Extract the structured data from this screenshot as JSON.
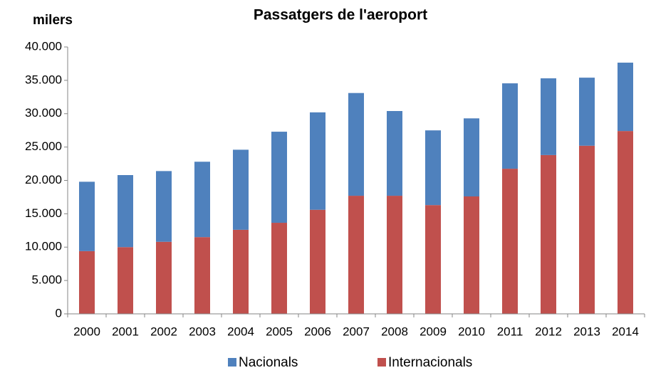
{
  "chart_data": {
    "type": "stacked_bar",
    "title": "Passatgers de l'aeroport",
    "y_label": "milers",
    "categories": [
      "2000",
      "2001",
      "2002",
      "2003",
      "2004",
      "2005",
      "2006",
      "2007",
      "2008",
      "2009",
      "2010",
      "2011",
      "2012",
      "2013",
      "2014"
    ],
    "series": [
      {
        "name": "Nacionals",
        "color": "#4f81bd",
        "values": [
          10400,
          10800,
          10600,
          11300,
          12000,
          13650,
          14600,
          15400,
          12700,
          11200,
          11700,
          12800,
          11500,
          10200,
          10250
        ]
      },
      {
        "name": "Internacionals",
        "color": "#c0504d",
        "values": [
          9400,
          10000,
          10800,
          11500,
          12600,
          13650,
          15600,
          17700,
          17700,
          16300,
          17600,
          21750,
          23800,
          25200,
          27400
        ]
      }
    ],
    "ylim": [
      0,
      40000
    ],
    "yticks": [
      0,
      {
        "value": 5000,
        "label": "5.000"
      },
      {
        "value": 10000,
        "label": "10.000"
      },
      {
        "value": 15000,
        "label": "15.000"
      },
      {
        "value": 20000,
        "label": "20.000"
      },
      {
        "value": 25000,
        "label": "25.000"
      },
      {
        "value": 30000,
        "label": "30.000"
      },
      {
        "value": 35000,
        "label": "35.000"
      },
      {
        "value": 40000,
        "label": "40.000"
      }
    ],
    "grid": false,
    "legend": "bottom"
  }
}
